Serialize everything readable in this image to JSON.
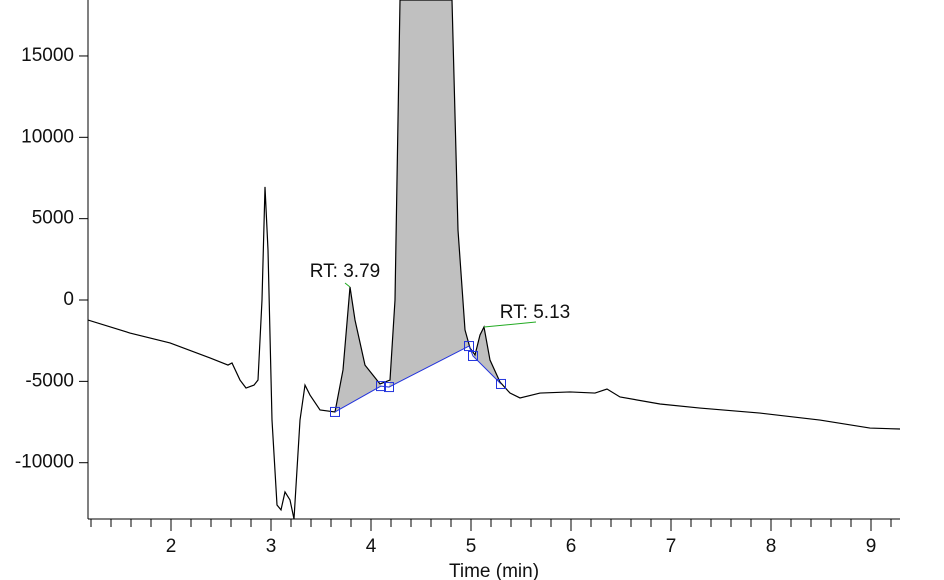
{
  "chart_data": {
    "type": "line",
    "x_label": "Time (min)",
    "xlim": [
      1.17,
      9.29
    ],
    "ylim": [
      -13460,
      18440
    ],
    "xticks": [
      2,
      3,
      4,
      5,
      6,
      7,
      8,
      9
    ],
    "xminorticks": [
      1.2,
      1.4,
      1.6,
      1.8,
      2.2,
      2.4,
      2.6,
      2.8,
      3.2,
      3.4,
      3.6,
      3.8,
      4.2,
      4.4,
      4.6,
      4.8,
      5.2,
      5.4,
      5.6,
      5.8,
      6.2,
      6.4,
      6.6,
      6.8,
      7.2,
      7.4,
      7.6,
      7.8,
      8.2,
      8.4,
      8.6,
      8.8,
      9.2
    ],
    "yticks": [
      -10000,
      -5000,
      0,
      5000,
      10000,
      15000
    ],
    "series": [
      {
        "color": "#000000",
        "x": [
          1.17,
          1.59,
          1.99,
          2.39,
          2.57,
          2.61,
          2.69,
          2.75,
          2.83,
          2.87,
          2.91,
          2.94,
          2.97,
          3.01,
          3.06,
          3.1,
          3.14,
          3.19,
          3.23,
          3.29,
          3.34,
          3.39,
          3.49,
          3.64,
          3.72,
          3.79,
          3.84,
          3.94,
          4.09,
          4.19,
          4.24,
          4.29,
          4.81,
          4.87,
          4.94,
          4.99,
          5.04,
          5.09,
          5.13,
          5.19,
          5.29,
          5.39,
          5.49,
          5.69,
          5.99,
          6.24,
          6.36,
          6.49,
          6.89,
          7.29,
          7.89,
          8.49,
          8.99,
          9.29
        ],
        "values": [
          -1230,
          -2030,
          -2640,
          -3560,
          -4000,
          -3870,
          -4920,
          -5410,
          -5230,
          -4920,
          0,
          6950,
          3070,
          -7380,
          -12600,
          -12900,
          -11800,
          -12290,
          -13460,
          -7380,
          -5230,
          -5840,
          -6760,
          -6880,
          -4300,
          800,
          -1230,
          -4000,
          -5160,
          -4920,
          0,
          18440,
          18440,
          4300,
          -1840,
          -2950,
          -3380,
          -2150,
          -1660,
          -3690,
          -5040,
          -5720,
          -6020,
          -5720,
          -5650,
          -5720,
          -5470,
          -5960,
          -6390,
          -6640,
          -6950,
          -7380,
          -7870,
          -7930
        ]
      }
    ],
    "baseline": {
      "color": "#2233dd",
      "x": [
        3.64,
        4.1,
        4.18,
        4.98,
        5.02,
        5.3
      ],
      "values": [
        -6880,
        -5290,
        -5350,
        -2830,
        -3440,
        -5160
      ]
    },
    "fill_color": "#c0c0c0",
    "annotations": [
      {
        "text": "RT: 3.79",
        "x": 3.79,
        "y": 800
      },
      {
        "text": "RT: 5.13",
        "x": 5.13,
        "y": -1660
      }
    ]
  }
}
